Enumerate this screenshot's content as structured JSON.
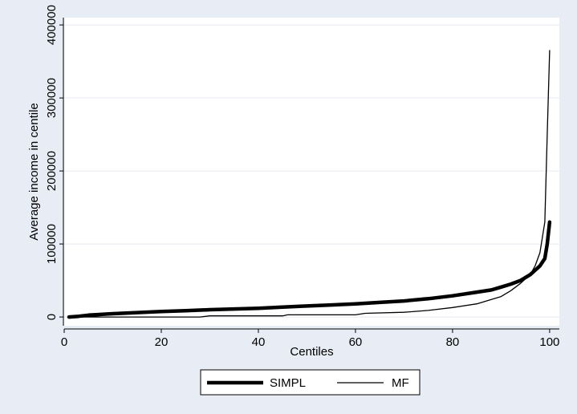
{
  "chart_data": {
    "type": "line",
    "title": "",
    "xlabel": "Centiles",
    "ylabel": "Average income in centile",
    "xlim": [
      0,
      102
    ],
    "ylim": [
      -12000,
      410000
    ],
    "x_ticks": [
      0,
      20,
      40,
      60,
      80,
      100
    ],
    "y_ticks": [
      0,
      100000,
      200000,
      300000,
      400000
    ],
    "x_tick_labels": [
      "0",
      "20",
      "40",
      "60",
      "80",
      "100"
    ],
    "y_tick_labels": [
      "0",
      "100000",
      "200000",
      "300000",
      "400000"
    ],
    "grid": "horizontal",
    "legend_position": "bottom",
    "series": [
      {
        "name": "SIMPL",
        "line_width": "thick",
        "color": "#000000",
        "x": [
          1,
          3,
          5,
          10,
          15,
          20,
          25,
          30,
          35,
          40,
          45,
          50,
          55,
          60,
          65,
          70,
          75,
          80,
          85,
          88,
          90,
          92,
          94,
          95,
          96,
          97,
          98,
          99,
          99.5,
          100
        ],
        "values": [
          0,
          1000,
          2500,
          4500,
          6000,
          7500,
          8500,
          10000,
          11000,
          12000,
          13500,
          15000,
          16500,
          18000,
          20000,
          22000,
          25000,
          29000,
          34000,
          37000,
          41000,
          45000,
          50000,
          54000,
          58000,
          64000,
          70000,
          80000,
          100000,
          130000
        ]
      },
      {
        "name": "MF",
        "line_width": "thin",
        "color": "#000000",
        "x": [
          1,
          10,
          20,
          28,
          30,
          40,
          45,
          46,
          60,
          62,
          70,
          75,
          80,
          85,
          88,
          90,
          92,
          94,
          96,
          97,
          98,
          99,
          99.5,
          100
        ],
        "values": [
          0,
          0,
          0,
          0,
          1500,
          1500,
          1500,
          3000,
          3000,
          5000,
          6500,
          9000,
          13000,
          18000,
          24000,
          28000,
          36000,
          46000,
          58000,
          70000,
          88000,
          130000,
          250000,
          365000
        ]
      }
    ]
  }
}
